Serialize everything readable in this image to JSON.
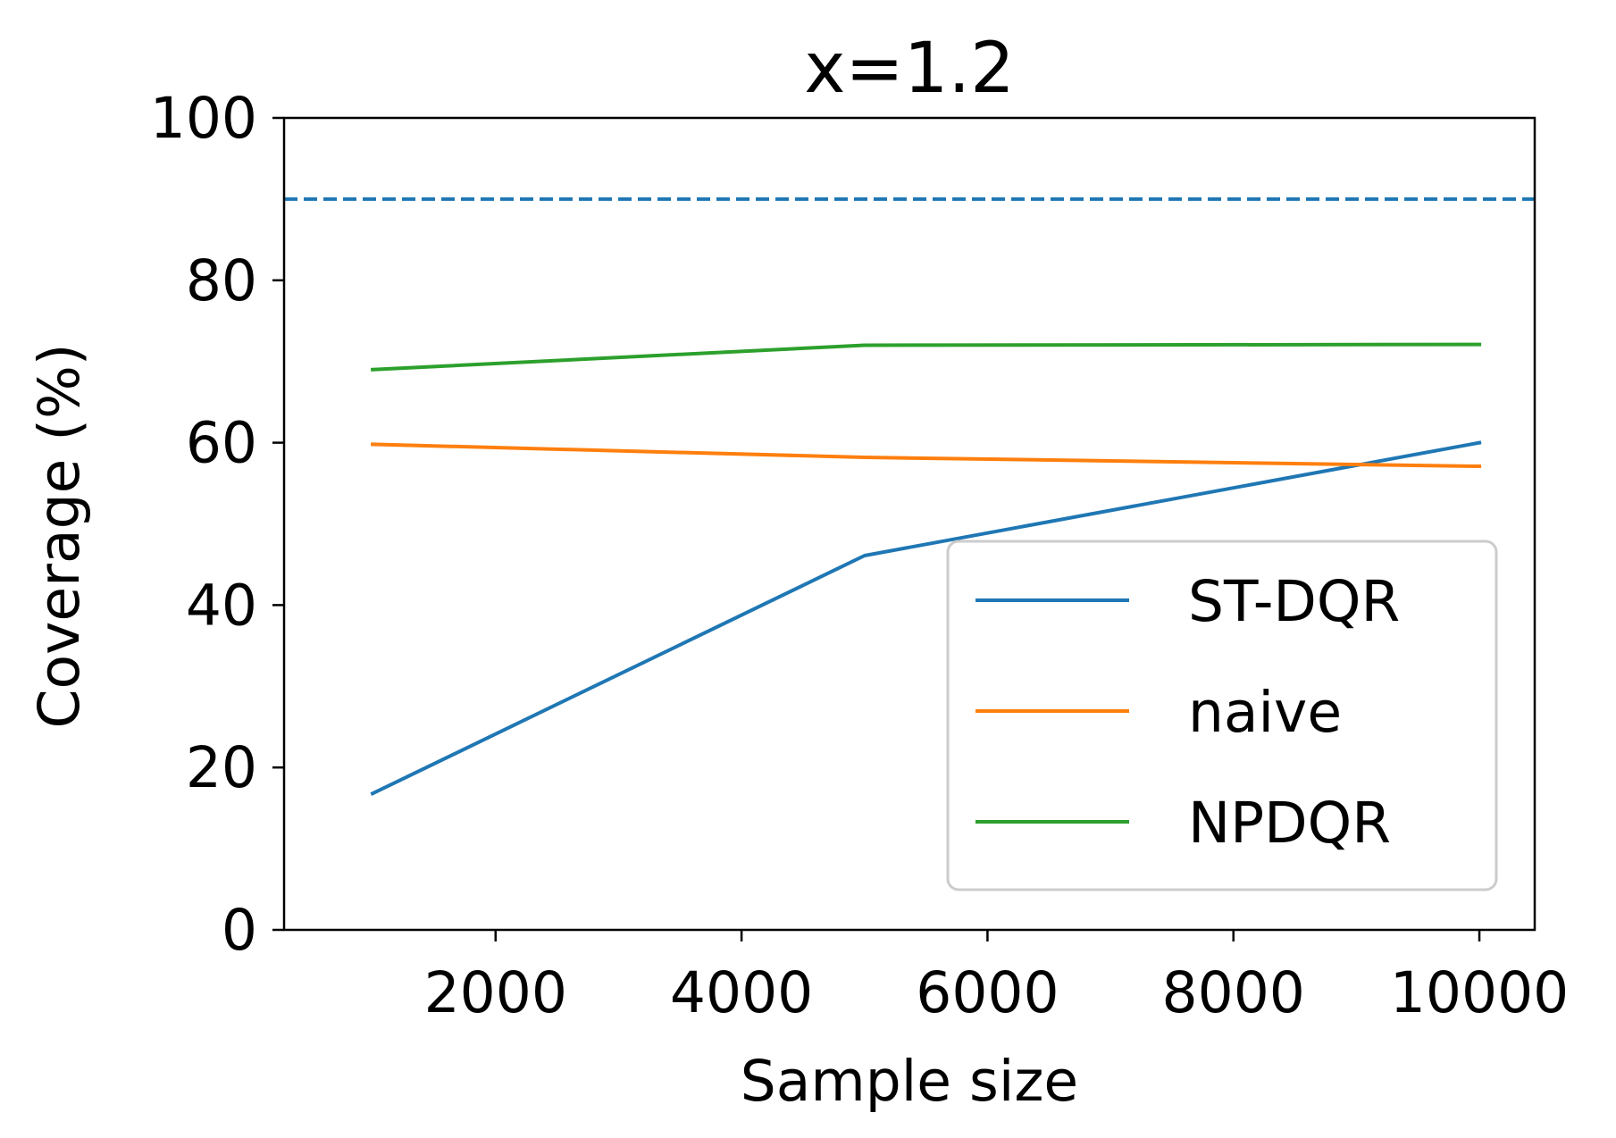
{
  "chart_data": {
    "type": "line",
    "title": "x=1.2",
    "xlabel": "Sample size",
    "ylabel": "Coverage (%)",
    "x": [
      1000,
      5000,
      10000
    ],
    "xlim": [
      280,
      10450
    ],
    "ylim": [
      0,
      100
    ],
    "xticks": [
      2000,
      4000,
      6000,
      8000,
      10000
    ],
    "yticks": [
      0,
      20,
      40,
      60,
      80,
      100
    ],
    "xtick_labels": [
      "2000",
      "4000",
      "6000",
      "8000",
      "10000"
    ],
    "ytick_labels": [
      "0",
      "20",
      "40",
      "60",
      "80",
      "100"
    ],
    "series": [
      {
        "name": "ST-DQR",
        "color": "#1f77b4",
        "values": [
          16.8,
          46.1,
          60.0
        ]
      },
      {
        "name": "naive",
        "color": "#ff7f0e",
        "values": [
          59.8,
          58.2,
          57.1
        ]
      },
      {
        "name": "NPDQR",
        "color": "#2ca02c",
        "values": [
          69.0,
          72.0,
          72.1
        ]
      }
    ],
    "reference_line": {
      "y": 90,
      "style": "dashed",
      "color": "#1f77b4"
    },
    "grid": false,
    "legend_position": "lower-right"
  }
}
